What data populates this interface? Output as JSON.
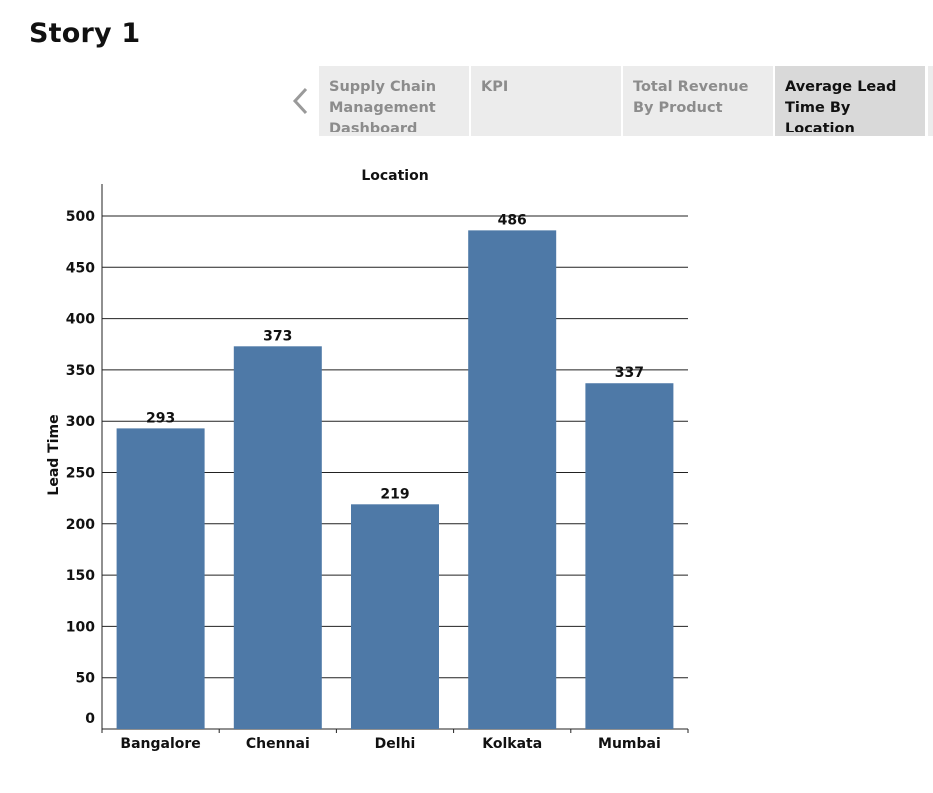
{
  "story": {
    "title": "Story 1"
  },
  "tabs": [
    {
      "label": "Supply Chain Management Dashboard",
      "active": false
    },
    {
      "label": "KPI",
      "active": false
    },
    {
      "label": "Total Revenue By Product",
      "active": false
    },
    {
      "label": "Average Lead Time By Location",
      "active": true
    }
  ],
  "chart_data": {
    "type": "bar",
    "title": "Location",
    "xlabel": "",
    "ylabel": "Lead Time",
    "categories": [
      "Bangalore",
      "Chennai",
      "Delhi",
      "Kolkata",
      "Mumbai"
    ],
    "values": [
      293,
      373,
      219,
      486,
      337
    ],
    "data_labels": [
      "293",
      "373",
      "219",
      "486",
      "337"
    ],
    "ylim": [
      0,
      500
    ],
    "yticks": [
      0,
      50,
      100,
      150,
      200,
      250,
      300,
      350,
      400,
      450,
      500
    ],
    "grid": true,
    "bar_color": "#4e79a7"
  }
}
